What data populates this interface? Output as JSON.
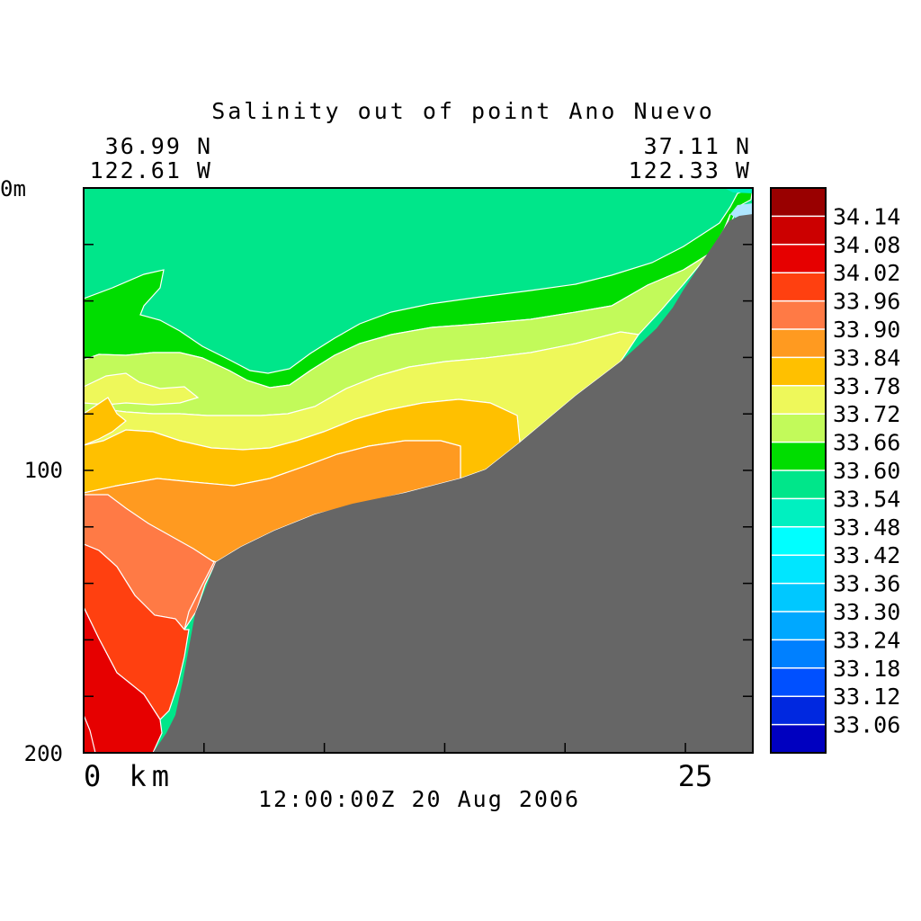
{
  "chart_data": {
    "type": "heatmap",
    "title": "Salinity out of point Ano Nuevo",
    "subtitle": "12:00:00Z  20 Aug 2006",
    "corner_left": {
      "lat": "36.99 N",
      "lon": "122.61 W"
    },
    "corner_right": {
      "lat": "37.11 N",
      "lon": "122.33 W"
    },
    "x_axis": {
      "range": [
        0,
        27.8
      ],
      "tick_labels": [
        {
          "value": 0,
          "label": "0 km"
        },
        {
          "value": 25,
          "label": "25"
        }
      ],
      "minor_ticks": [
        5,
        10,
        15,
        20
      ]
    },
    "y_axis": {
      "range": [
        0,
        200
      ],
      "inverted": true,
      "tick_labels": [
        {
          "value": 0,
          "label": "0m"
        },
        {
          "value": 100,
          "label": "100"
        },
        {
          "value": 200,
          "label": "200"
        }
      ],
      "minor_ticks": [
        20,
        40,
        60,
        80,
        120,
        140,
        160,
        180
      ]
    },
    "colorbar": {
      "labels": [
        "34.14",
        "34.08",
        "34.02",
        "33.96",
        "33.90",
        "33.84",
        "33.78",
        "33.72",
        "33.66",
        "33.60",
        "33.54",
        "33.48",
        "33.42",
        "33.36",
        "33.30",
        "33.24",
        "33.18",
        "33.12",
        "33.06"
      ],
      "colors": [
        "#990000",
        "#cc0000",
        "#e60000",
        "#ff4010",
        "#ff7a45",
        "#ff9a20",
        "#ffc000",
        "#eef85a",
        "#c2fa5a",
        "#00dd00",
        "#00e68a",
        "#00f0c0",
        "#00ffff",
        "#00e6ff",
        "#00c8ff",
        "#00a8ff",
        "#0080ff",
        "#0050ff",
        "#0028e0",
        "#0000c0"
      ]
    },
    "bathymetry_color": "#666666",
    "contour_line_color": "#ffffff",
    "salinity_bands": [
      {
        "range": "33.42-33.48",
        "color": "#00ffff"
      },
      {
        "range": "33.48-33.54",
        "color": "#00f0c0"
      },
      {
        "range": "33.54-33.60",
        "color": "#00e68a"
      },
      {
        "range": "33.60-33.66",
        "color": "#00dd00"
      },
      {
        "range": "33.66-33.72",
        "color": "#c2fa5a"
      },
      {
        "range": "33.72-33.78",
        "color": "#eef85a"
      },
      {
        "range": "33.78-33.84",
        "color": "#ffc000"
      },
      {
        "range": "33.84-33.90",
        "color": "#ff9a20"
      },
      {
        "range": "33.90-33.96",
        "color": "#ff7a45"
      },
      {
        "range": "33.96-34.02",
        "color": "#ff4010"
      },
      {
        "range": "34.02-34.08",
        "color": "#e60000"
      }
    ]
  }
}
